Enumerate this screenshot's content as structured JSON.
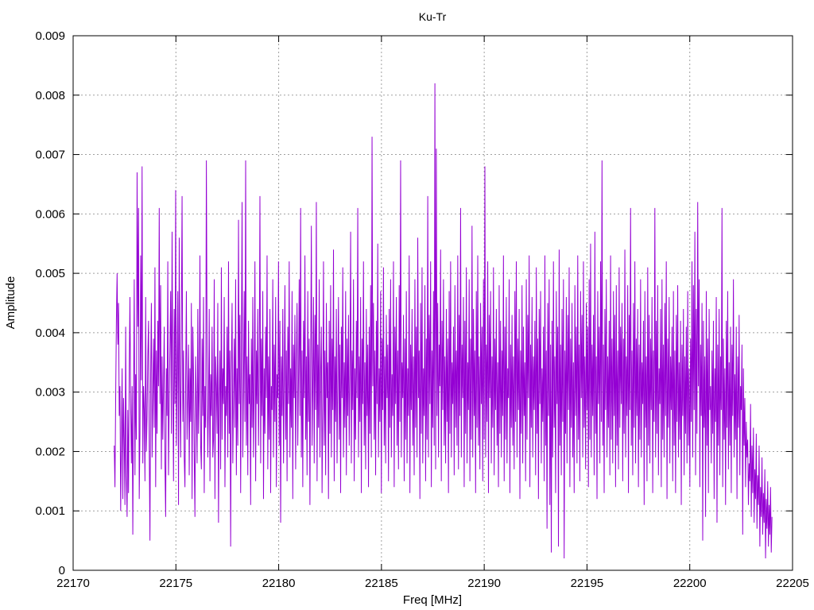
{
  "chart_data": {
    "type": "line",
    "title": "Ku-Tr",
    "xlabel": "Freq [MHz]",
    "ylabel": "Amplitude",
    "xlim": [
      22170,
      22205
    ],
    "ylim": [
      0,
      0.009
    ],
    "x_ticks": [
      22170,
      22175,
      22180,
      22185,
      22190,
      22195,
      22200,
      22205
    ],
    "x_tick_labels": [
      "22170",
      "22175",
      "22180",
      "22185",
      "22190",
      "22195",
      "22200",
      "22205"
    ],
    "y_ticks": [
      0,
      0.001,
      0.002,
      0.003,
      0.004,
      0.005,
      0.006,
      0.007,
      0.008,
      0.009
    ],
    "y_tick_labels": [
      "0",
      "0.001",
      "0.002",
      "0.003",
      "0.004",
      "0.005",
      "0.006",
      "0.007",
      "0.008",
      "0.009"
    ],
    "grid": true,
    "legend": "none",
    "series": [
      {
        "color": "#9400d3",
        "x_start": 22172.0,
        "x_end": 22204.0,
        "x_step": 0.05,
        "values": [
          0.0021,
          0.0014,
          0.0029,
          0.0042,
          0.005,
          0.0038,
          0.0045,
          0.0026,
          0.0031,
          0.001,
          0.0021,
          0.0034,
          0.0012,
          0.0029,
          0.0022,
          0.0011,
          0.0041,
          0.0016,
          0.0009,
          0.0027,
          0.0013,
          0.0034,
          0.0046,
          0.0028,
          0.0018,
          0.0031,
          0.0006,
          0.0028,
          0.0049,
          0.0016,
          0.0033,
          0.0022,
          0.0067,
          0.0041,
          0.0061,
          0.0012,
          0.0023,
          0.0053,
          0.0032,
          0.0068,
          0.0018,
          0.0031,
          0.0027,
          0.0015,
          0.0046,
          0.002,
          0.0026,
          0.0036,
          0.0042,
          0.0021,
          0.0005,
          0.0033,
          0.0045,
          0.0019,
          0.0029,
          0.0039,
          0.0024,
          0.0051,
          0.0014,
          0.0037,
          0.0023,
          0.0042,
          0.0031,
          0.0061,
          0.0028,
          0.0048,
          0.0017,
          0.0036,
          0.0022,
          0.0031,
          0.0041,
          0.0018,
          0.0009,
          0.0034,
          0.0026,
          0.0052,
          0.0016,
          0.0029,
          0.0038,
          0.0047,
          0.0023,
          0.0057,
          0.0032,
          0.0015,
          0.0044,
          0.0028,
          0.0064,
          0.0021,
          0.0033,
          0.0047,
          0.0011,
          0.0056,
          0.0031,
          0.0019,
          0.0042,
          0.0063,
          0.0025,
          0.0037,
          0.0019,
          0.0014,
          0.0032,
          0.0047,
          0.0022,
          0.0029,
          0.0038,
          0.0016,
          0.0034,
          0.0025,
          0.0045,
          0.0012,
          0.0041,
          0.0033,
          0.0019,
          0.0009,
          0.0036,
          0.0028,
          0.0018,
          0.0044,
          0.0023,
          0.0031,
          0.0053,
          0.0021,
          0.0017,
          0.0039,
          0.0026,
          0.0046,
          0.0013,
          0.0031,
          0.0024,
          0.0069,
          0.0037,
          0.0019,
          0.0028,
          0.0044,
          0.0015,
          0.0033,
          0.0026,
          0.0041,
          0.0019,
          0.0022,
          0.0049,
          0.0012,
          0.0036,
          0.0031,
          0.0023,
          0.0045,
          0.0008,
          0.0029,
          0.0037,
          0.0017,
          0.0051,
          0.0022,
          0.0034,
          0.0028,
          0.0046,
          0.0014,
          0.0031,
          0.0026,
          0.0041,
          0.0019,
          0.0052,
          0.0023,
          0.0037,
          0.0004,
          0.0033,
          0.0045,
          0.0018,
          0.0029,
          0.0039,
          0.0024,
          0.0049,
          0.0016,
          0.0034,
          0.0021,
          0.0059,
          0.0028,
          0.0043,
          0.0013,
          0.0036,
          0.0062,
          0.0019,
          0.0031,
          0.0047,
          0.0025,
          0.0069,
          0.0021,
          0.0036,
          0.0016,
          0.0042,
          0.0028,
          0.0033,
          0.0011,
          0.0039,
          0.0024,
          0.0046,
          0.0019,
          0.0031,
          0.0052,
          0.0015,
          0.0037,
          0.0028,
          0.0044,
          0.0021,
          0.0033,
          0.0063,
          0.0018,
          0.0039,
          0.0026,
          0.0047,
          0.0012,
          0.0034,
          0.0023,
          0.0041,
          0.0029,
          0.0053,
          0.0017,
          0.0036,
          0.0022,
          0.0044,
          0.0013,
          0.0031,
          0.0027,
          0.0049,
          0.0019,
          0.0038,
          0.0025,
          0.0046,
          0.0014,
          0.0033,
          0.0029,
          0.0052,
          0.0021,
          0.0042,
          0.0008,
          0.0036,
          0.0026,
          0.0044,
          0.0018,
          0.0032,
          0.0048,
          0.0022,
          0.0037,
          0.0015,
          0.0041,
          0.0028,
          0.0052,
          0.0019,
          0.0034,
          0.0024,
          0.0047,
          0.0012,
          0.0038,
          0.0029,
          0.0043,
          0.0017,
          0.0035,
          0.0045,
          0.0021,
          0.0032,
          0.0049,
          0.0026,
          0.0061,
          0.0019,
          0.0037,
          0.0014,
          0.0042,
          0.0029,
          0.0053,
          0.0022,
          0.0036,
          0.0016,
          0.0047,
          0.0025,
          0.0039,
          0.0011,
          0.0034,
          0.0058,
          0.0021,
          0.0031,
          0.0046,
          0.0018,
          0.0043,
          0.0027,
          0.0062,
          0.0015,
          0.0038,
          0.0024,
          0.0049,
          0.0019,
          0.0033,
          0.0041,
          0.0013,
          0.0028,
          0.0052,
          0.0021,
          0.0037,
          0.0016,
          0.0045,
          0.0029,
          0.0035,
          0.0012,
          0.0042,
          0.0023,
          0.0048,
          0.0019,
          0.0039,
          0.0027,
          0.0054,
          0.0015,
          0.0036,
          0.0025,
          0.0044,
          0.0018,
          0.0032,
          0.0046,
          0.0022,
          0.0038,
          0.0013,
          0.0041,
          0.0029,
          0.0051,
          0.0019,
          0.0035,
          0.0024,
          0.0047,
          0.0016,
          0.0039,
          0.0026,
          0.0043,
          0.0021,
          0.0033,
          0.0057,
          0.0018,
          0.0037,
          0.0027,
          0.0049,
          0.0015,
          0.0034,
          0.0022,
          0.0042,
          0.0029,
          0.0061,
          0.0019,
          0.0036,
          0.0025,
          0.0046,
          0.0013,
          0.0039,
          0.0028,
          0.0052,
          0.0021,
          0.0035,
          0.0017,
          0.0044,
          0.0026,
          0.0038,
          0.0014,
          0.0041,
          0.0023,
          0.0048,
          0.0019,
          0.0073,
          0.0031,
          0.0045,
          0.0022,
          0.0037,
          0.0016,
          0.0042,
          0.0028,
          0.0055,
          0.0019,
          0.0034,
          0.0025,
          0.0047,
          0.0013,
          0.0039,
          0.0027,
          0.0051,
          0.0021,
          0.0036,
          0.0018,
          0.0043,
          0.0029,
          0.0038,
          0.0015,
          0.0044,
          0.0024,
          0.0049,
          0.0019,
          0.0033,
          0.0026,
          0.0052,
          0.0014,
          0.0041,
          0.0028,
          0.0046,
          0.0021,
          0.0037,
          0.0017,
          0.0048,
          0.0025,
          0.0069,
          0.0019,
          0.0035,
          0.0029,
          0.0043,
          0.0015,
          0.0039,
          0.0022,
          0.0047,
          0.0018,
          0.0034,
          0.0026,
          0.0053,
          0.0013,
          0.0038,
          0.0027,
          0.0044,
          0.0021,
          0.0036,
          0.0016,
          0.0049,
          0.0024,
          0.0041,
          0.0019,
          0.0056,
          0.0029,
          0.0037,
          0.0012,
          0.0045,
          0.0023,
          0.0051,
          0.0018,
          0.0034,
          0.0026,
          0.0048,
          0.0015,
          0.0039,
          0.0022,
          0.0063,
          0.0019,
          0.0043,
          0.0028,
          0.0052,
          0.0014,
          0.0037,
          0.0024,
          0.0047,
          0.0021,
          0.0082,
          0.0017,
          0.0071,
          0.0026,
          0.0045,
          0.0019,
          0.0038,
          0.0031,
          0.0054,
          0.0015,
          0.0042,
          0.0027,
          0.0049,
          0.0021,
          0.0036,
          0.0018,
          0.0044,
          0.0025,
          0.0039,
          0.0013,
          0.0047,
          0.0023,
          0.0052,
          0.0019,
          0.0035,
          0.0028,
          0.0041,
          0.0016,
          0.0048,
          0.0024,
          0.0037,
          0.0021,
          0.0053,
          0.0017,
          0.0043,
          0.0026,
          0.0061,
          0.0019,
          0.0038,
          0.0029,
          0.0046,
          0.0014,
          0.0042,
          0.0023,
          0.0051,
          0.0018,
          0.0035,
          0.0027,
          0.0049,
          0.0015,
          0.0039,
          0.0022,
          0.0058,
          0.0019,
          0.0044,
          0.0026,
          0.0037,
          0.0013,
          0.0047,
          0.0024,
          0.0053,
          0.0021,
          0.0036,
          0.0017,
          0.0045,
          0.0028,
          0.0041,
          0.0015,
          0.0049,
          0.0022,
          0.0068,
          0.0019,
          0.0038,
          0.0025,
          0.0052,
          0.0013,
          0.0043,
          0.0029,
          0.0047,
          0.0018,
          0.0036,
          0.0024,
          0.0051,
          0.0016,
          0.0039,
          0.0027,
          0.0044,
          0.0021,
          0.0035,
          0.0014,
          0.0048,
          0.0023,
          0.0042,
          0.0019,
          0.0037,
          0.0026,
          0.0053,
          0.0015,
          0.0041,
          0.0022,
          0.0046,
          0.0018,
          0.0034,
          0.0029,
          0.0049,
          0.0013,
          0.0038,
          0.0024,
          0.0043,
          0.0021,
          0.0036,
          0.0017,
          0.0047,
          0.0025,
          0.0052,
          0.0019,
          0.0039,
          0.0027,
          0.0044,
          0.0012,
          0.0037,
          0.0023,
          0.0048,
          0.0018,
          0.0041,
          0.0026,
          0.0035,
          0.0015,
          0.0049,
          0.0022,
          0.0043,
          0.0029,
          0.0053,
          0.0014,
          0.0038,
          0.0024,
          0.0046,
          0.0019,
          0.0036,
          0.0027,
          0.0042,
          0.0016,
          0.0051,
          0.0023,
          0.0039,
          0.0012,
          0.0044,
          0.0028,
          0.0047,
          0.0018,
          0.0034,
          0.0025,
          0.0041,
          0.0015,
          0.0053,
          0.0021,
          0.0037,
          0.0007,
          0.0045,
          0.0026,
          0.0049,
          0.0011,
          0.0038,
          0.0003,
          0.0042,
          0.0019,
          0.0052,
          0.0024,
          0.0036,
          0.0013,
          0.0047,
          0.0028,
          0.0041,
          0.0004,
          0.0054,
          0.0021,
          0.0038,
          0.0016,
          0.0044,
          0.0025,
          0.0049,
          0.0002,
          0.0037,
          0.0023,
          0.0046,
          0.0018,
          0.0043,
          0.0027,
          0.0051,
          0.0014,
          0.0039,
          0.0024,
          0.0045,
          0.0019,
          0.0035,
          0.0013,
          0.0048,
          0.0026,
          0.0041,
          0.0018,
          0.0053,
          0.0022,
          0.0038,
          0.0015,
          0.0047,
          0.0029,
          0.0043,
          0.0019,
          0.0052,
          0.0024,
          0.0036,
          0.0017,
          0.0045,
          0.0027,
          0.0041,
          0.0014,
          0.0049,
          0.0022,
          0.0055,
          0.0019,
          0.0038,
          0.0026,
          0.0043,
          0.0016,
          0.0057,
          0.0023,
          0.0036,
          0.0012,
          0.0047,
          0.0028,
          0.0041,
          0.0018,
          0.0052,
          0.0025,
          0.0069,
          0.0021,
          0.0038,
          0.0013,
          0.0044,
          0.0027,
          0.0049,
          0.0019,
          0.0036,
          0.0024,
          0.0042,
          0.0016,
          0.0053,
          0.0022,
          0.0039,
          0.0018,
          0.0047,
          0.0026,
          0.0043,
          0.0014,
          0.0048,
          0.0021,
          0.0037,
          0.0017,
          0.0051,
          0.0024,
          0.0041,
          0.0028,
          0.0045,
          0.0015,
          0.0039,
          0.0023,
          0.0054,
          0.0019,
          0.0036,
          0.0026,
          0.0048,
          0.0013,
          0.0043,
          0.0027,
          0.0061,
          0.0021,
          0.0037,
          0.0016,
          0.0045,
          0.0024,
          0.0052,
          0.0018,
          0.0039,
          0.0026,
          0.0044,
          0.0014,
          0.0038,
          0.0022,
          0.0049,
          0.0019,
          0.0035,
          0.0028,
          0.0042,
          0.0011,
          0.0047,
          0.0024,
          0.0036,
          0.0015,
          0.0051,
          0.0021,
          0.0043,
          0.0018,
          0.0039,
          0.0027,
          0.0046,
          0.0013,
          0.0037,
          0.0025,
          0.0061,
          0.0019,
          0.0042,
          0.0023,
          0.0048,
          0.0016,
          0.0034,
          0.0028,
          0.0044,
          0.0014,
          0.0049,
          0.0022,
          0.0038,
          0.0019,
          0.0045,
          0.0026,
          0.0052,
          0.0012,
          0.0039,
          0.0024,
          0.0046,
          0.0018,
          0.0036,
          0.0027,
          0.0041,
          0.0015,
          0.0047,
          0.0021,
          0.0037,
          0.0013,
          0.0043,
          0.0025,
          0.0048,
          0.0019,
          0.0035,
          0.0022,
          0.0042,
          0.0011,
          0.0038,
          0.0026,
          0.0044,
          0.0016,
          0.0036,
          0.0023,
          0.0041,
          0.0018,
          0.0047,
          0.0021,
          0.0034,
          0.0014,
          0.0039,
          0.0025,
          0.0052,
          0.0019,
          0.0048,
          0.0027,
          0.0057,
          0.0016,
          0.0044,
          0.0023,
          0.0062,
          0.0031,
          0.0049,
          0.0014,
          0.0038,
          0.0026,
          0.0045,
          0.0005,
          0.0042,
          0.0024,
          0.0036,
          0.0009,
          0.0047,
          0.0021,
          0.0039,
          0.0013,
          0.0044,
          0.0027,
          0.0031,
          0.0018,
          0.0037,
          0.0023,
          0.0042,
          0.0012,
          0.0034,
          0.0025,
          0.0046,
          0.0008,
          0.0038,
          0.0021,
          0.0044,
          0.0016,
          0.0036,
          0.0027,
          0.0061,
          0.0014,
          0.0039,
          0.0022,
          0.0034,
          0.0011,
          0.0042,
          0.0024,
          0.0047,
          0.0017,
          0.0035,
          0.0021,
          0.0041,
          0.0013,
          0.0038,
          0.0026,
          0.0049,
          0.0019,
          0.0033,
          0.0022,
          0.0041,
          0.0012,
          0.0036,
          0.0024,
          0.0043,
          0.0016,
          0.0031,
          0.0027,
          0.0038,
          0.0006,
          0.0034,
          0.0021,
          0.0029,
          0.0014,
          0.0025,
          0.0019,
          0.0022,
          0.0011,
          0.0018,
          0.0015,
          0.0028,
          0.0009,
          0.0021,
          0.0013,
          0.0024,
          0.0008,
          0.0017,
          0.0012,
          0.0023,
          0.0007,
          0.0016,
          0.0011,
          0.0021,
          0.0004,
          0.0014,
          0.0009,
          0.0019,
          0.0006,
          0.0013,
          0.0008,
          0.0017,
          0.0002,
          0.0012,
          0.0007,
          0.0015,
          0.0004,
          0.0011,
          0.0006,
          0.0014,
          0.0003,
          0.0009
        ]
      }
    ]
  }
}
